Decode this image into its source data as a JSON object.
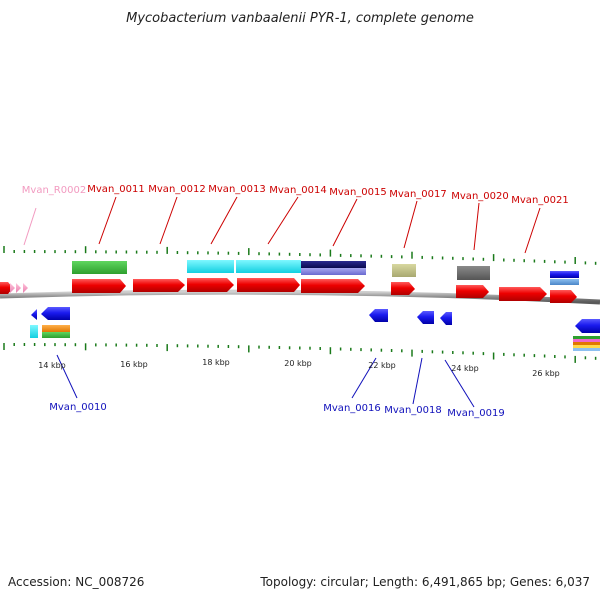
{
  "title": "Mycobacterium vanbaalenii PYR-1, complete genome",
  "footer": {
    "accession": "Accession: NC_008726",
    "summary": "Topology: circular; Length: 6,491,865 bp; Genes: 6,037"
  },
  "scale": {
    "labels": [
      "14 kbp",
      "16 kbp",
      "18 kbp",
      "20 kbp",
      "22 kbp",
      "24 kbp",
      "26 kbp"
    ]
  },
  "genes_top": [
    {
      "name": "Mvan_R0002",
      "kind": "rna"
    },
    {
      "name": "Mvan_0011",
      "kind": "cds"
    },
    {
      "name": "Mvan_0012",
      "kind": "cds"
    },
    {
      "name": "Mvan_0013",
      "kind": "cds"
    },
    {
      "name": "Mvan_0014",
      "kind": "cds"
    },
    {
      "name": "Mvan_0015",
      "kind": "cds"
    },
    {
      "name": "Mvan_0017",
      "kind": "cds"
    },
    {
      "name": "Mvan_0020",
      "kind": "cds"
    },
    {
      "name": "Mvan_0021",
      "kind": "cds"
    }
  ],
  "genes_bottom": [
    {
      "name": "Mvan_0010"
    },
    {
      "name": "Mvan_0016"
    },
    {
      "name": "Mvan_0018"
    },
    {
      "name": "Mvan_0019"
    }
  ],
  "colors": {
    "forward_gene": "#ee0000",
    "reverse_gene": "#1a1aee",
    "rna_gene": "#f29ac0",
    "tick": "#1a7a1a",
    "backbone": "#999999"
  }
}
